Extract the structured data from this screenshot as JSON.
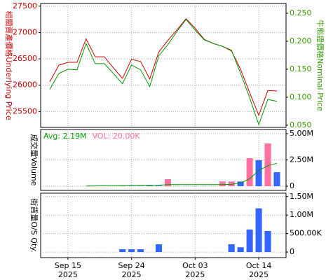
{
  "chart_data": [
    {
      "type": "line",
      "ylabel": "相關資產價格Underlying Price",
      "y2label": "牛熊證價格Nominal Price",
      "ylim": [
        25200,
        27550
      ],
      "yticks": [
        25500,
        26000,
        26500,
        27000,
        27500
      ],
      "y2lim": [
        0.046,
        0.2675
      ],
      "y2ticks": [
        {
          "value": 0.05,
          "label": "0.050"
        },
        {
          "value": 0.1,
          "label": "0.100"
        },
        {
          "value": 0.15,
          "label": "0.150"
        },
        {
          "value": 0.2,
          "label": "0.200"
        },
        {
          "value": 0.25,
          "label": "0.250"
        }
      ],
      "ylabel_color": "#cc0000",
      "y2label_color": "#339900",
      "grid": true,
      "series": [
        {
          "color": "#cc0000",
          "values": [
            26065,
            26380,
            26435,
            26435,
            26880,
            26540,
            26540,
            26330,
            26130,
            26490,
            26450,
            26120,
            26630,
            26850,
            27050,
            27260,
            27080,
            26870,
            26790,
            26740,
            26650,
            26300,
            25860,
            25430,
            25900,
            25890
          ]
        },
        {
          "color": "#009900",
          "axis": "y2",
          "values": [
            0.114,
            0.1425,
            0.15,
            0.149,
            0.196,
            0.16,
            0.16,
            0.1425,
            0.124,
            0.1575,
            0.149,
            0.119,
            0.174,
            0.194,
            0.2175,
            0.239,
            0.22,
            0.2025,
            0.196,
            0.191,
            0.184,
            0.1425,
            0.099,
            0.051,
            0.096,
            0.0925
          ]
        }
      ]
    },
    {
      "type": "bar",
      "ylabel": "成交量Volume",
      "ylim": [
        -400000,
        5400000
      ],
      "yticks": [
        0,
        {
          "value": 2500000,
          "label": "2.50M"
        },
        {
          "value": 5000000,
          "label": "5.00M"
        }
      ],
      "grid": true,
      "series": [
        {
          "name": "Avg: 2.19M",
          "type": "line",
          "color": "#009900",
          "values": [
            null,
            null,
            null,
            null,
            20000,
            30000,
            40000,
            50000,
            60000,
            70000,
            80000,
            90000,
            100000,
            150000,
            150000,
            150000,
            150000,
            150000,
            150000,
            150000,
            180000,
            300000,
            700000,
            1500000,
            1950000,
            2190000
          ]
        },
        {
          "name": "VOL: 20.00K",
          "color": "#ff6f9f",
          "colors": [
            "#3366ff",
            "#3366ff",
            "#3366ff",
            "#3366ff",
            "#3366ff",
            "#3366ff",
            "#3366ff",
            "#3366ff",
            "#ff6f9f",
            "#3366ff",
            "#3366ff",
            "#3366ff",
            "#3366ff",
            "#ff6f9f",
            "#3366ff",
            "#3366ff",
            "#3366ff",
            "#3366ff",
            "#3366ff",
            "#ff6f9f",
            "#ff6f9f",
            "#3366ff",
            "#ff6f9f",
            "#3366ff",
            "#ff6f9f",
            "#3366ff"
          ],
          "values": [
            0,
            0,
            0,
            0,
            0,
            0,
            0,
            0,
            50000,
            20000,
            20000,
            50000,
            50000,
            670000,
            10000,
            10000,
            10000,
            10000,
            10000,
            450000,
            450000,
            450000,
            2670000,
            2470000,
            4070000,
            1330000
          ]
        }
      ]
    },
    {
      "type": "bar",
      "ylabel": "街貨量O/S Qty.",
      "ylim": [
        -150000,
        1590000
      ],
      "yticks": [
        0,
        {
          "value": 500000,
          "label": "500.00K"
        },
        {
          "value": 1000000,
          "label": "1.00M"
        },
        {
          "value": 1500000,
          "label": "1.50M"
        }
      ],
      "grid": true,
      "color": "#3366ff",
      "categories": [
        null,
        null,
        "Sep 15\n2025",
        null,
        null,
        null,
        null,
        null,
        null,
        "Sep 24\n2025",
        null,
        null,
        null,
        null,
        null,
        null,
        "Oct 03\n2025",
        null,
        null,
        null,
        null,
        null,
        null,
        "Oct 14\n2025",
        null,
        null
      ],
      "values": [
        0,
        0,
        0,
        0,
        0,
        0,
        0,
        0,
        76000,
        76000,
        76000,
        0,
        210000,
        0,
        0,
        0,
        0,
        0,
        0,
        0,
        210000,
        130000,
        610000,
        1180000,
        570000,
        0
      ]
    }
  ]
}
